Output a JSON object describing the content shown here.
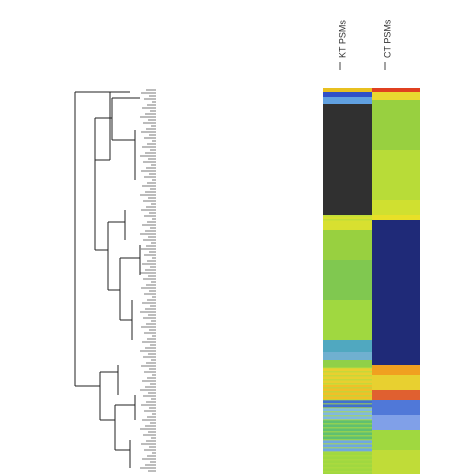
{
  "chart_data": {
    "type": "heatmap",
    "columns": [
      "KT PSMs",
      "CT PSMs"
    ]
  }
}
